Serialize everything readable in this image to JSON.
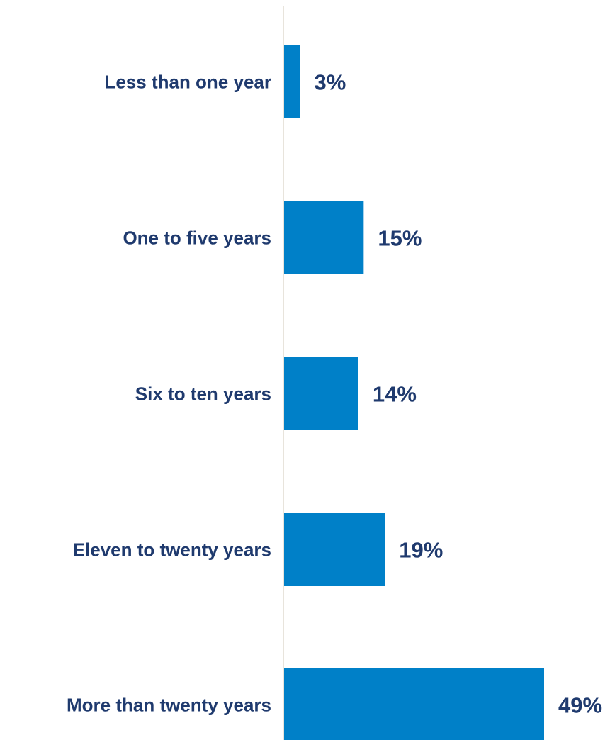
{
  "chart_data": {
    "type": "bar",
    "orientation": "horizontal",
    "categories": [
      "Less than one year",
      "One to five years",
      "Six to ten years",
      "Eleven to twenty years",
      "More than twenty years"
    ],
    "values": [
      3,
      15,
      14,
      19,
      49
    ],
    "value_labels": [
      "3%",
      "15%",
      "14%",
      "19%",
      "49%"
    ],
    "unit": "%",
    "title": "",
    "xlabel": "",
    "ylabel": "",
    "xlim": [
      0,
      49
    ],
    "grid": false,
    "legend": "none",
    "colors": {
      "bar": "#0080C8",
      "label_text": "#1F3A6E",
      "axis": "#E8E4DC"
    }
  }
}
